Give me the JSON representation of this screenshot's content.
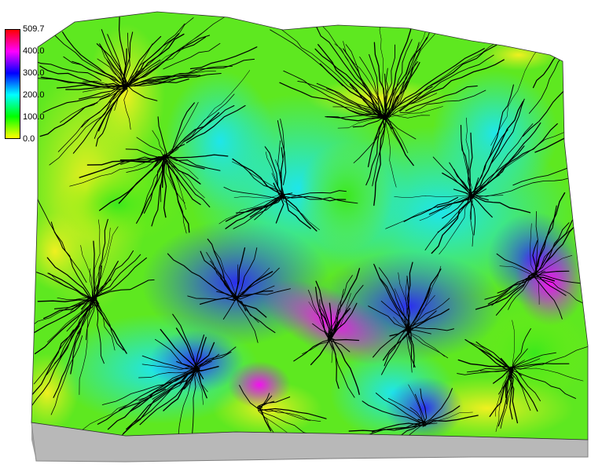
{
  "legend": {
    "ticks": [
      "509.7",
      "400.0",
      "300.0",
      "200.0",
      "100.0",
      "0.0"
    ],
    "ramp_colors": [
      "#ffff00",
      "#00ff00",
      "#00ffff",
      "#0000ff",
      "#ff00ff",
      "#ff0000"
    ]
  },
  "terrain": {
    "side_color": "#b8b8b8",
    "stream_color": "#000000"
  }
}
